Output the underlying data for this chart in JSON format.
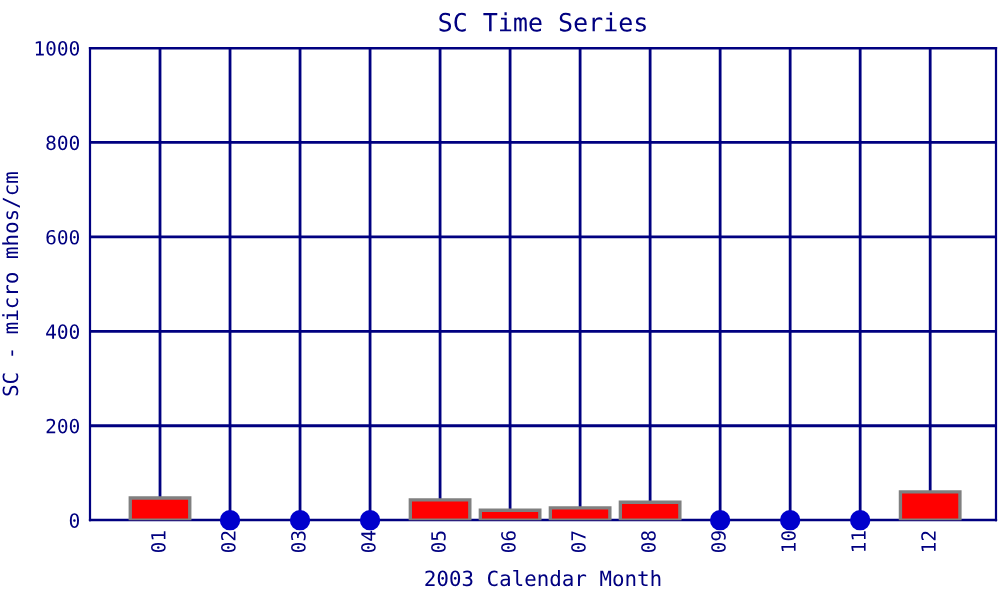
{
  "chart_data": {
    "type": "bar",
    "title": "SC Time Series",
    "xlabel": "2003 Calendar Month",
    "ylabel": "SC - micro mhos/cm",
    "categories": [
      "01",
      "02",
      "03",
      "04",
      "05",
      "06",
      "07",
      "08",
      "09",
      "10",
      "11",
      "12"
    ],
    "series": [
      {
        "color": "#ff0000",
        "values": [
          47,
          null,
          null,
          null,
          43,
          21,
          26,
          38,
          null,
          null,
          null,
          60
        ]
      },
      {
        "type": "scatter",
        "color": "#0000cc",
        "x": [
          "02",
          "03",
          "04",
          "09",
          "10",
          "11"
        ],
        "values": [
          0,
          0,
          0,
          0,
          0,
          0
        ]
      }
    ],
    "ylim": [
      0,
      1000
    ],
    "yticks": [
      0,
      200,
      400,
      600,
      800,
      1000
    ],
    "grid": true,
    "marker": "circle"
  }
}
